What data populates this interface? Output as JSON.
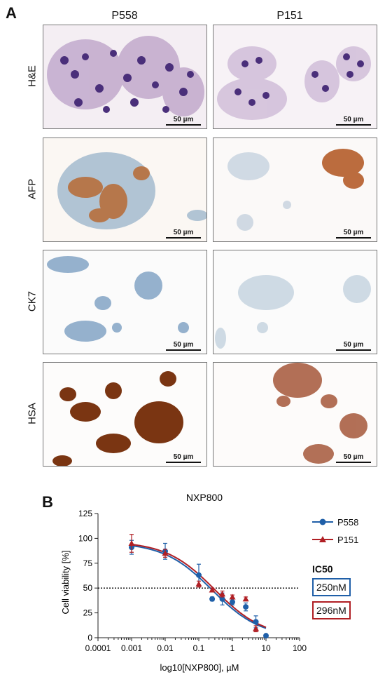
{
  "panel_a": {
    "letter": "A",
    "columns": [
      "P558",
      "P151"
    ],
    "rows": [
      "H&E",
      "AFP",
      "CK7",
      "HSA"
    ],
    "scale_label": "50 µm"
  },
  "panel_b": {
    "letter": "B",
    "legend": [
      {
        "name": "P558",
        "color": "#1f5fa8",
        "marker": "circle"
      },
      {
        "name": "P151",
        "color": "#b01f24",
        "marker": "triangle"
      }
    ],
    "ic50_title": "IC50",
    "ic50_values": [
      {
        "value": "250nM",
        "color": "#1f5fa8"
      },
      {
        "value": "296nM",
        "color": "#b01f24"
      }
    ]
  },
  "chart_data": {
    "type": "scatter",
    "title": "NXP800",
    "xlabel": "log10[NXP800], µM",
    "ylabel": "Cell viability [%]",
    "x_scale": "log",
    "xlim": [
      0.0001,
      100
    ],
    "ylim": [
      0,
      125
    ],
    "x_ticks": [
      "0.0001",
      "0.001",
      "0.01",
      "0.1",
      "1",
      "10",
      "100"
    ],
    "y_ticks": [
      "0",
      "25",
      "50",
      "75",
      "100",
      "125"
    ],
    "reference_line_y": 50,
    "series": [
      {
        "name": "P558",
        "color": "#1f5fa8",
        "points": [
          {
            "x": 0.001,
            "y": 91,
            "err": 7
          },
          {
            "x": 0.01,
            "y": 87,
            "err": 8
          },
          {
            "x": 0.1,
            "y": 63,
            "err": 11
          },
          {
            "x": 0.25,
            "y": 39,
            "err": 2
          },
          {
            "x": 0.5,
            "y": 39,
            "err": 6
          },
          {
            "x": 1,
            "y": 36,
            "err": 3
          },
          {
            "x": 2.5,
            "y": 31,
            "err": 4
          },
          {
            "x": 5,
            "y": 16,
            "err": 6
          },
          {
            "x": 10,
            "y": 2,
            "err": 0
          }
        ],
        "fit": {
          "top": 96,
          "bottom": 0,
          "ic50": 0.25,
          "hill": 0.6
        }
      },
      {
        "name": "P151",
        "color": "#b01f24",
        "points": [
          {
            "x": 0.001,
            "y": 95,
            "err": 9
          },
          {
            "x": 0.01,
            "y": 85,
            "err": 4
          },
          {
            "x": 0.1,
            "y": 54,
            "err": 3
          },
          {
            "x": 0.25,
            "y": 48,
            "err": 2
          },
          {
            "x": 0.5,
            "y": 44,
            "err": 3
          },
          {
            "x": 1,
            "y": 41,
            "err": 2
          },
          {
            "x": 2.5,
            "y": 39,
            "err": 2
          },
          {
            "x": 5,
            "y": 9,
            "err": 3
          }
        ],
        "fit": {
          "top": 97,
          "bottom": 0,
          "ic50": 0.296,
          "hill": 0.6
        }
      }
    ]
  }
}
